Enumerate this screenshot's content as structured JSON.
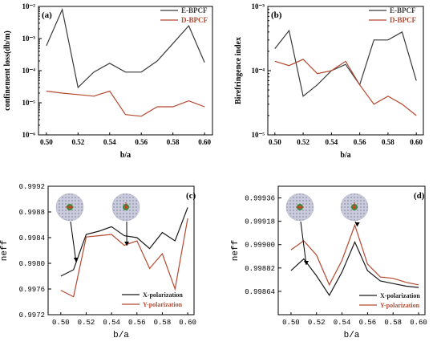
{
  "chart_data": [
    {
      "id": "a",
      "type": "line",
      "panel_label": "(a)",
      "xlabel": "b/a",
      "ylabel": "confinement loss(db/m)",
      "yscale": "log",
      "xlim": [
        0.5,
        0.6
      ],
      "ylim_exp": [
        -6,
        -2
      ],
      "x_ticks": [
        "0.50",
        "0.52",
        "0.54",
        "0.56",
        "0.58",
        "0.60"
      ],
      "y_ticks": [
        "10⁻⁶",
        "10⁻⁵",
        "10⁻⁴",
        "10⁻³",
        "10⁻²"
      ],
      "legend_position": "top-right",
      "x": [
        0.5,
        0.51,
        0.52,
        0.53,
        0.54,
        0.55,
        0.56,
        0.57,
        0.58,
        0.59,
        0.6
      ],
      "series": [
        {
          "name": "E-BPCF",
          "color": "#3a3a3a",
          "values": [
            0.0006,
            0.008,
            3e-05,
            9e-05,
            0.00017,
            9e-05,
            9e-05,
            0.0002,
            0.0007,
            0.0025,
            0.00018
          ]
        },
        {
          "name": "D-BPCF",
          "color": "#b5482f",
          "values": [
            2.3e-05,
            2e-05,
            1.8e-05,
            1.6e-05,
            2.3e-05,
            4.3e-06,
            3.8e-06,
            7.5e-06,
            7.5e-06,
            1.15e-05,
            7.5e-06
          ]
        }
      ]
    },
    {
      "id": "b",
      "type": "line",
      "panel_label": "(b)",
      "xlabel": "b/a",
      "ylabel": "Birefringence index",
      "yscale": "log",
      "xlim": [
        0.5,
        0.6
      ],
      "ylim_exp": [
        -5,
        -3
      ],
      "x_ticks": [
        "0.50",
        "0.52",
        "0.54",
        "0.56",
        "0.58",
        "0.60"
      ],
      "y_ticks": [
        "10⁻⁵",
        "10⁻⁴",
        "10⁻³"
      ],
      "legend_position": "top-right",
      "x": [
        0.5,
        0.51,
        0.52,
        0.53,
        0.54,
        0.55,
        0.56,
        0.57,
        0.58,
        0.59,
        0.6
      ],
      "series": [
        {
          "name": "E-BPCF",
          "color": "#3a3a3a",
          "values": [
            0.00022,
            0.00042,
            4e-05,
            6e-05,
            0.0001,
            0.000125,
            6e-05,
            0.0003,
            0.0003,
            0.0004,
            7e-05
          ]
        },
        {
          "name": "D-BPCF",
          "color": "#b5482f",
          "values": [
            0.00014,
            0.00012,
            0.00015,
            9e-05,
            0.0001,
            0.00014,
            6e-05,
            3e-05,
            4e-05,
            3e-05,
            2e-05
          ]
        }
      ]
    },
    {
      "id": "c",
      "type": "line",
      "panel_label": "(c)",
      "xlabel": "b/a",
      "ylabel": "neff",
      "yscale": "linear",
      "xlim": [
        0.49,
        0.605
      ],
      "ylim": [
        0.9972,
        0.9992
      ],
      "x_ticks": [
        "0.50",
        "0.52",
        "0.54",
        "0.56",
        "0.58",
        "0.60"
      ],
      "x_tick_values": [
        0.5,
        0.52,
        0.54,
        0.56,
        0.58,
        0.6
      ],
      "y_ticks": [
        "0.9972",
        "0.9976",
        "0.9980",
        "0.9984",
        "0.9988",
        "0.9992"
      ],
      "y_tick_values": [
        0.9972,
        0.9976,
        0.998,
        0.9984,
        0.9988,
        0.9992
      ],
      "legend_position": "bottom-right",
      "x": [
        0.5,
        0.51,
        0.52,
        0.53,
        0.54,
        0.55,
        0.56,
        0.57,
        0.58,
        0.59,
        0.6
      ],
      "series": [
        {
          "name": "X-polarization",
          "color": "#1a1a1a",
          "values": [
            0.9978,
            0.9979,
            0.99845,
            0.9985,
            0.99857,
            0.99843,
            0.9984,
            0.99823,
            0.99848,
            0.99835,
            0.99887
          ]
        },
        {
          "name": "Y-polarization",
          "color": "#b5482f",
          "values": [
            0.99758,
            0.99748,
            0.99841,
            0.99843,
            0.99845,
            0.99828,
            0.99835,
            0.99792,
            0.99815,
            0.9976,
            0.9987
          ]
        }
      ]
    },
    {
      "id": "d",
      "type": "line",
      "panel_label": "(d)",
      "xlabel": "b/a",
      "ylabel": "neff",
      "yscale": "linear",
      "xlim": [
        0.49,
        0.605
      ],
      "ylim": [
        0.99846,
        0.99945
      ],
      "x_ticks": [
        "0.50",
        "0.52",
        "0.54",
        "0.56",
        "0.58",
        "0.60"
      ],
      "x_tick_values": [
        0.5,
        0.52,
        0.54,
        0.56,
        0.58,
        0.6
      ],
      "y_ticks": [
        "0.99864",
        "0.99882",
        "0.99900",
        "0.99918",
        "0.99936"
      ],
      "y_tick_values": [
        0.99864,
        0.99882,
        0.999,
        0.99918,
        0.99936
      ],
      "legend_position": "bottom-right",
      "x": [
        0.5,
        0.51,
        0.52,
        0.53,
        0.54,
        0.55,
        0.56,
        0.57,
        0.58,
        0.59,
        0.6
      ],
      "series": [
        {
          "name": "X-polarization",
          "color": "#1a1a1a",
          "values": [
            0.9988,
            0.99889,
            0.99876,
            0.99861,
            0.99879,
            0.99902,
            0.9988,
            0.99872,
            0.9987,
            0.99868,
            0.99867
          ]
        },
        {
          "name": "Y-polarization",
          "color": "#b5482f",
          "values": [
            0.99896,
            0.99903,
            0.99892,
            0.99869,
            0.99888,
            0.99915,
            0.99885,
            0.99875,
            0.99874,
            0.99871,
            0.99869
          ]
        }
      ]
    }
  ]
}
